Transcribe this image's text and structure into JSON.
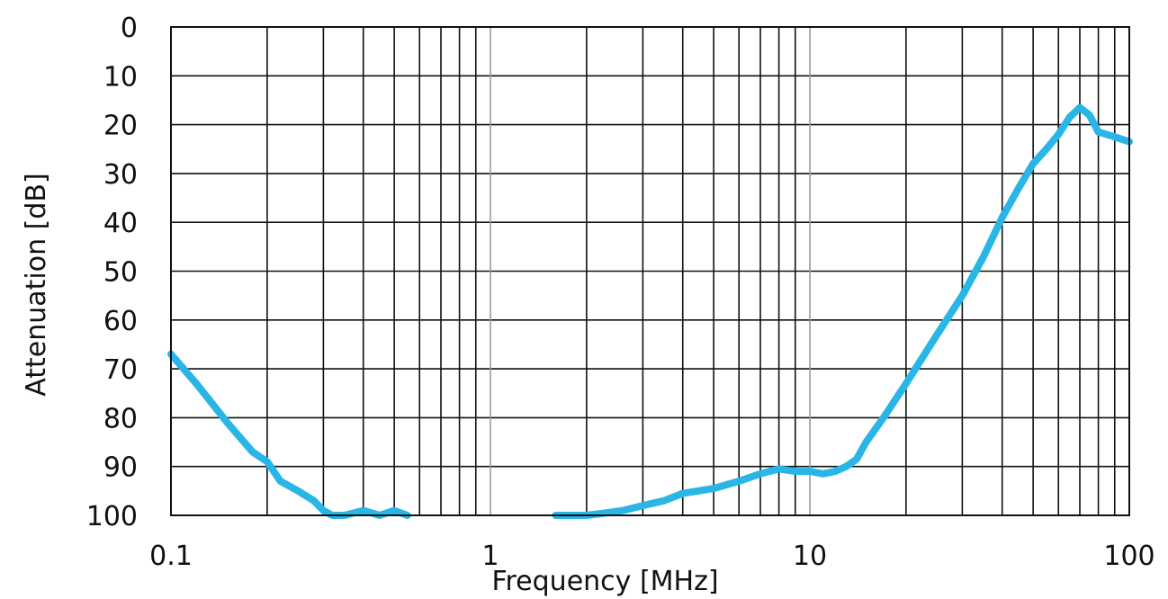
{
  "chart_data": {
    "type": "line",
    "title": "",
    "xlabel": "Frequency [MHz]",
    "ylabel": "Attenuation [dB]",
    "xscale": "log",
    "xlim": [
      0.1,
      100
    ],
    "ylim": [
      100,
      0
    ],
    "y_inverted": true,
    "grid": true,
    "legend": "none",
    "x_ticks": [
      "0.1",
      "1",
      "10",
      "100"
    ],
    "y_ticks": [
      "0",
      "10",
      "20",
      "30",
      "40",
      "50",
      "60",
      "70",
      "80",
      "90",
      "100"
    ],
    "x_tick_values": [
      0.1,
      1,
      10,
      100
    ],
    "y_tick_values": [
      0,
      10,
      20,
      30,
      40,
      50,
      60,
      70,
      80,
      90,
      100
    ],
    "colors": {
      "series": "#29b6e6",
      "grid_major": "#999999",
      "grid_minor": "#111111",
      "frame": "#111111"
    },
    "series": [
      {
        "x": [
          0.1,
          0.12,
          0.15,
          0.18,
          0.2,
          0.22,
          0.25,
          0.28,
          0.3,
          0.32,
          0.35,
          0.4,
          0.45,
          0.5,
          0.55
        ],
        "y": [
          67,
          73,
          81,
          87,
          89,
          93,
          95,
          97,
          99,
          100,
          100,
          99,
          100,
          99,
          100
        ]
      },
      {
        "x": [
          1.6,
          2.0,
          2.3,
          2.6,
          3.0,
          3.5,
          4.0,
          5.0,
          6.0,
          7.0,
          8.0,
          9.0,
          10,
          11,
          12,
          13,
          14,
          15,
          17,
          20,
          25,
          30,
          35,
          40,
          45,
          50,
          55,
          60,
          65,
          70,
          75,
          80,
          90,
          100
        ],
        "y": [
          100,
          100,
          99.5,
          99,
          98,
          97,
          95.5,
          94.5,
          93,
          91.5,
          90.5,
          91,
          91,
          91.5,
          91,
          90,
          88.5,
          85,
          80,
          73,
          63,
          55,
          47,
          39,
          33,
          28,
          25,
          22,
          18.5,
          16.5,
          18,
          21.5,
          22.5,
          23.5
        ]
      }
    ]
  }
}
